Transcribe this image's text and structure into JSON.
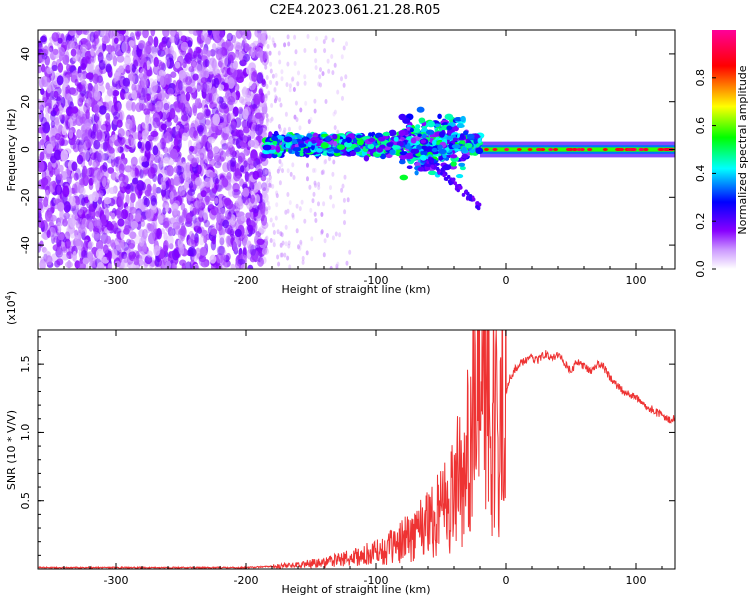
{
  "title": "C2E4.2023.061.21.28.R05",
  "chart_data": [
    {
      "type": "heatmap",
      "title": "C2E4.2023.061.21.28.R05",
      "xlabel": "Height of straight line (km)",
      "ylabel": "Frequency (Hz)",
      "xlim": [
        -360,
        130
      ],
      "ylim": [
        -50,
        50
      ],
      "x_ticks": [
        -300,
        -200,
        -100,
        0,
        100
      ],
      "y_ticks": [
        -40,
        -20,
        0,
        20,
        40
      ],
      "x_tick_labels": [
        "-300",
        "-200",
        "-100",
        "0",
        "100"
      ],
      "y_tick_labels": [
        "-40",
        "-20",
        "0",
        "20",
        "40"
      ],
      "colorbar": {
        "label": "Normalized spectral amplitude",
        "range": [
          0,
          1
        ],
        "ticks": [
          0.0,
          0.2,
          0.4,
          0.6,
          0.8
        ],
        "tick_labels": [
          "0.0",
          "0.2",
          "0.4",
          "0.6",
          "0.8"
        ],
        "colormap": [
          "#ffffff",
          "#8800ff",
          "#0000ff",
          "#00ffff",
          "#00ff00",
          "#ffff00",
          "#ff0000",
          "#ff0088"
        ]
      },
      "regions": [
        {
          "name": "broadband noise",
          "x_range": [
            -360,
            -185
          ],
          "freq_range": [
            -50,
            50
          ],
          "amplitude": 0.08
        },
        {
          "name": "scattered speckle",
          "x_range": [
            -185,
            -120
          ],
          "freq_range": [
            -50,
            50
          ],
          "amplitude": 0.03
        },
        {
          "name": "signal band",
          "x_range": [
            -185,
            -20
          ],
          "freq_center": 2,
          "freq_halfwidth": 4,
          "amplitude": 0.35
        },
        {
          "name": "carrier line",
          "x_range": [
            -20,
            130
          ],
          "freq_center": 0,
          "freq_halfwidth": 1.5,
          "amplitude": 0.6
        }
      ]
    },
    {
      "type": "line",
      "xlabel": "Height of straight line (km)",
      "ylabel": "SNR (10 * V/V)",
      "scale_label": "(x10^4)",
      "scale_prefix": "(x10",
      "scale_exponent": "4",
      "scale_suffix": ")",
      "xlim": [
        -360,
        130
      ],
      "ylim": [
        0,
        1.75
      ],
      "x_ticks": [
        -300,
        -200,
        -100,
        0,
        100
      ],
      "y_ticks": [
        0.5,
        1.0,
        1.5
      ],
      "x_tick_labels": [
        "-300",
        "-200",
        "-100",
        "0",
        "100"
      ],
      "y_tick_labels": [
        "0.5",
        "1.0",
        "1.5"
      ],
      "series": [
        {
          "name": "SNR",
          "color": "#ee3333",
          "x": [
            -360,
            -300,
            -250,
            -200,
            -180,
            -160,
            -140,
            -120,
            -100,
            -90,
            -80,
            -70,
            -60,
            -50,
            -40,
            -35,
            -30,
            -25,
            -20,
            -18,
            -15,
            -12,
            -10,
            -8,
            -5,
            -2,
            0,
            3,
            6,
            10,
            15,
            20,
            25,
            30,
            35,
            40,
            45,
            50,
            55,
            60,
            65,
            70,
            75,
            80,
            85,
            90,
            95,
            100,
            105,
            110,
            115,
            120,
            125,
            130
          ],
          "values": [
            0.01,
            0.01,
            0.01,
            0.01,
            0.02,
            0.03,
            0.05,
            0.08,
            0.12,
            0.15,
            0.2,
            0.28,
            0.35,
            0.45,
            0.55,
            0.75,
            0.9,
            1.05,
            1.25,
            1.72,
            1.2,
            1.0,
            1.15,
            1.1,
            0.95,
            1.35,
            1.3,
            1.4,
            1.45,
            1.5,
            1.52,
            1.55,
            1.53,
            1.58,
            1.55,
            1.57,
            1.5,
            1.45,
            1.52,
            1.48,
            1.45,
            1.5,
            1.48,
            1.4,
            1.35,
            1.3,
            1.28,
            1.25,
            1.22,
            1.18,
            1.15,
            1.12,
            1.1,
            1.1
          ]
        }
      ]
    }
  ]
}
